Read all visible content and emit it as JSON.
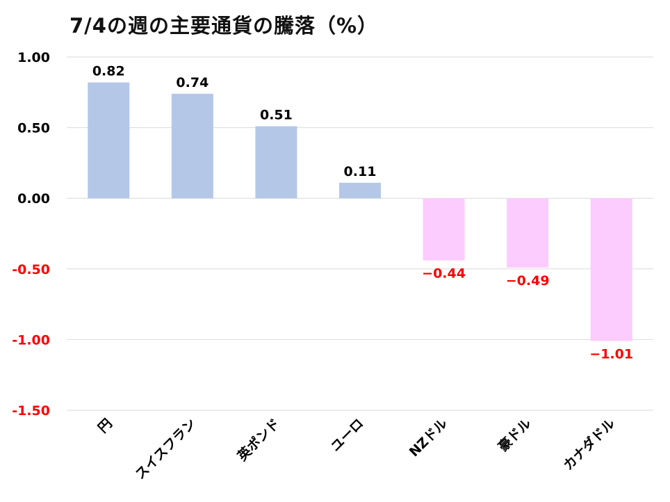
{
  "chart_data": {
    "type": "bar",
    "title": "7/4の週の主要通貨の騰落（%）",
    "categories": [
      "円",
      "スイスフラン",
      "英ポンド",
      "ユーロ",
      "NZドル",
      "豪ドル",
      "カナダドル"
    ],
    "values": [
      0.82,
      0.74,
      0.51,
      0.11,
      -0.44,
      -0.49,
      -1.01
    ],
    "data_labels": [
      "0.82",
      "0.74",
      "0.51",
      "0.11",
      "−0.44",
      "−0.49",
      "−1.01"
    ],
    "ylim": [
      -1.5,
      1.0
    ],
    "yticks": [
      1.0,
      0.5,
      0.0,
      -0.5,
      -1.0,
      -1.5
    ],
    "ytick_labels": [
      "1.00",
      "0.50",
      "0.00",
      "-0.50",
      "-1.00",
      "-1.50"
    ],
    "xlabel": "",
    "ylabel": "",
    "grid": true,
    "legend": "none"
  },
  "colors": {
    "positive_bar": "#b4c7e7",
    "negative_bar": "#fccbff",
    "positive_text": "#000000",
    "negative_text": "#ff0000"
  }
}
